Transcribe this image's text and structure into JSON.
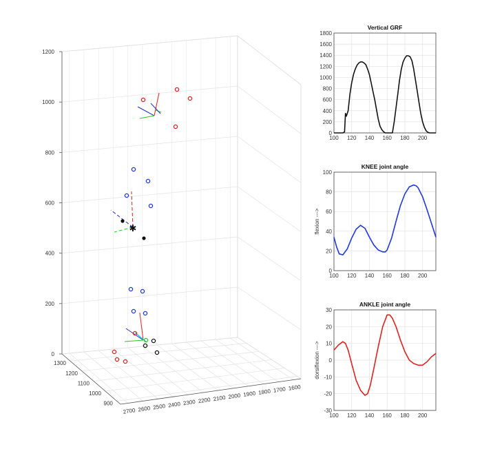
{
  "chart_data": [
    {
      "type": "scatter",
      "title": "",
      "projection": "3d",
      "z_ticks": [
        "0",
        "200",
        "400",
        "600",
        "800",
        "1000",
        "1200"
      ],
      "x_ticks": [
        "2700",
        "2600",
        "2500",
        "2400",
        "2300",
        "2200",
        "2100",
        "2000",
        "1900",
        "1800",
        "1700",
        "1600"
      ],
      "y_ticks": [
        "900",
        "1000",
        "1100",
        "1200",
        "1300"
      ],
      "zlim": [
        0,
        1200
      ],
      "colors": {
        "pelvis": "#e0201e",
        "thigh": "#1e35e0",
        "shank": "#1e35e0",
        "foot": "#111111",
        "axis_x": "#e0201e",
        "axis_y": "#22cc22",
        "axis_z": "#2030d0",
        "cyan": "#18c8d0"
      }
    },
    {
      "type": "line",
      "title": "Vertical GRF",
      "ylabel": "",
      "xlim": [
        100,
        215
      ],
      "ylim": [
        0,
        1800
      ],
      "x_ticks": [
        100,
        120,
        140,
        160,
        180,
        200
      ],
      "y_ticks": [
        0,
        200,
        400,
        600,
        800,
        1000,
        1200,
        1400,
        1600,
        1800
      ],
      "color": "#111111",
      "x": [
        100,
        110,
        112,
        113,
        114,
        116,
        118,
        120,
        122,
        124,
        126,
        128,
        130,
        132,
        134,
        136,
        138,
        140,
        142,
        144,
        146,
        148,
        150,
        152,
        154,
        156,
        158,
        160,
        162,
        164,
        166,
        168,
        170,
        172,
        174,
        176,
        178,
        180,
        182,
        184,
        186,
        188,
        190,
        192,
        194,
        196,
        198,
        200,
        202,
        204,
        206,
        208,
        210,
        215
      ],
      "y": [
        0,
        0,
        20,
        350,
        300,
        400,
        700,
        900,
        1050,
        1150,
        1220,
        1260,
        1280,
        1280,
        1260,
        1230,
        1150,
        1050,
        900,
        750,
        600,
        420,
        250,
        120,
        60,
        20,
        0,
        0,
        0,
        0,
        0,
        200,
        450,
        700,
        950,
        1150,
        1280,
        1350,
        1390,
        1390,
        1370,
        1300,
        1150,
        950,
        750,
        550,
        350,
        200,
        100,
        40,
        10,
        0,
        0,
        0
      ]
    },
    {
      "type": "line",
      "title": "KNEE joint angle",
      "ylabel": "flexion --->",
      "xlim": [
        100,
        215
      ],
      "ylim": [
        0,
        100
      ],
      "x_ticks": [
        100,
        120,
        140,
        160,
        180,
        200
      ],
      "y_ticks": [
        0,
        20,
        40,
        60,
        80,
        100
      ],
      "color": "#1e35e0",
      "x": [
        100,
        103,
        106,
        110,
        115,
        120,
        125,
        130,
        135,
        140,
        145,
        150,
        155,
        158,
        160,
        165,
        170,
        175,
        180,
        185,
        190,
        193,
        195,
        200,
        205,
        210,
        215
      ],
      "y": [
        34,
        24,
        17,
        16,
        22,
        33,
        42,
        46,
        43,
        34,
        26,
        21,
        19,
        19,
        21,
        33,
        50,
        66,
        78,
        85,
        87,
        86,
        84,
        75,
        62,
        48,
        34
      ]
    },
    {
      "type": "line",
      "title": "ANKLE joint angle",
      "ylabel": "dorsiflexion --->",
      "xlim": [
        100,
        215
      ],
      "ylim": [
        -30,
        30
      ],
      "x_ticks": [
        100,
        120,
        140,
        160,
        180,
        200
      ],
      "y_ticks": [
        -30,
        -20,
        -10,
        0,
        10,
        20,
        30
      ],
      "color": "#e0201e",
      "x": [
        100,
        105,
        110,
        113,
        116,
        120,
        125,
        130,
        135,
        138,
        141,
        145,
        150,
        155,
        160,
        163,
        166,
        170,
        175,
        180,
        185,
        190,
        195,
        200,
        205,
        210,
        215
      ],
      "y": [
        6,
        9,
        11,
        10,
        6,
        -2,
        -12,
        -18,
        -21,
        -20,
        -15,
        -5,
        8,
        20,
        27,
        27,
        25,
        20,
        12,
        5,
        0,
        -2,
        -3,
        -3,
        -1,
        2,
        4
      ]
    }
  ]
}
